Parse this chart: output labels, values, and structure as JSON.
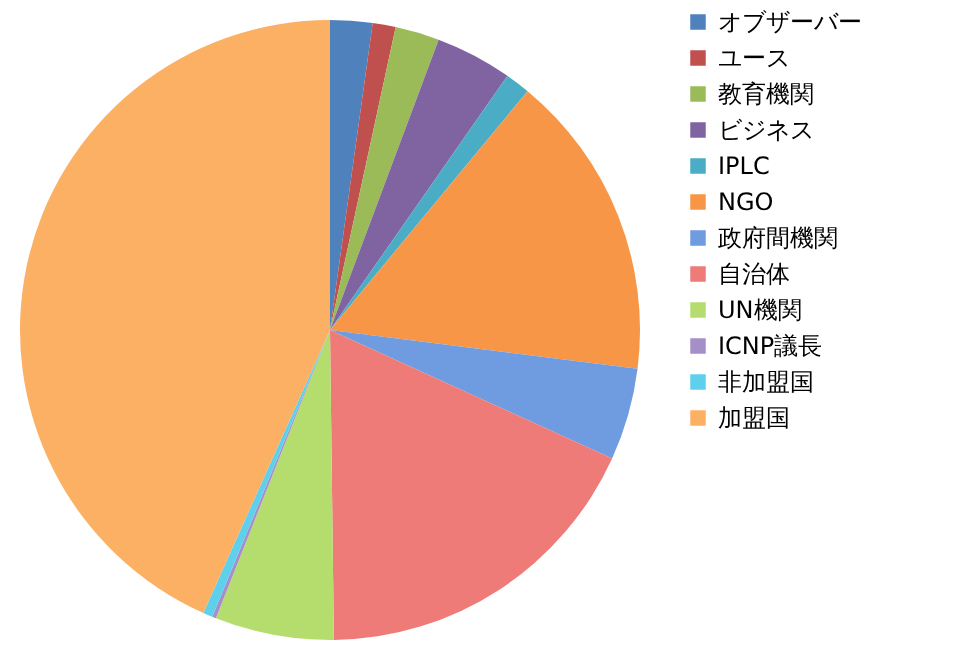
{
  "chart_data": {
    "type": "pie",
    "categories": [
      "オブザーバー",
      "ユース",
      "教育機関",
      "ビジネス",
      "IPLC",
      "NGO",
      "政府間機関",
      "自治体",
      "UN機関",
      "ICNP議長",
      "非加盟国",
      "加盟国"
    ],
    "values": [
      2.2,
      1.2,
      2.3,
      4.0,
      1.3,
      16.0,
      4.8,
      18.0,
      6.2,
      0.2,
      0.5,
      43.3
    ],
    "colors": [
      "#4f81bd",
      "#c0504d",
      "#9bbb59",
      "#8064a2",
      "#4bacc6",
      "#f79646",
      "#6f9be0",
      "#ee7b78",
      "#b5dd6e",
      "#a58fc8",
      "#5ed0ec",
      "#fbb064"
    ],
    "legend": "right"
  }
}
